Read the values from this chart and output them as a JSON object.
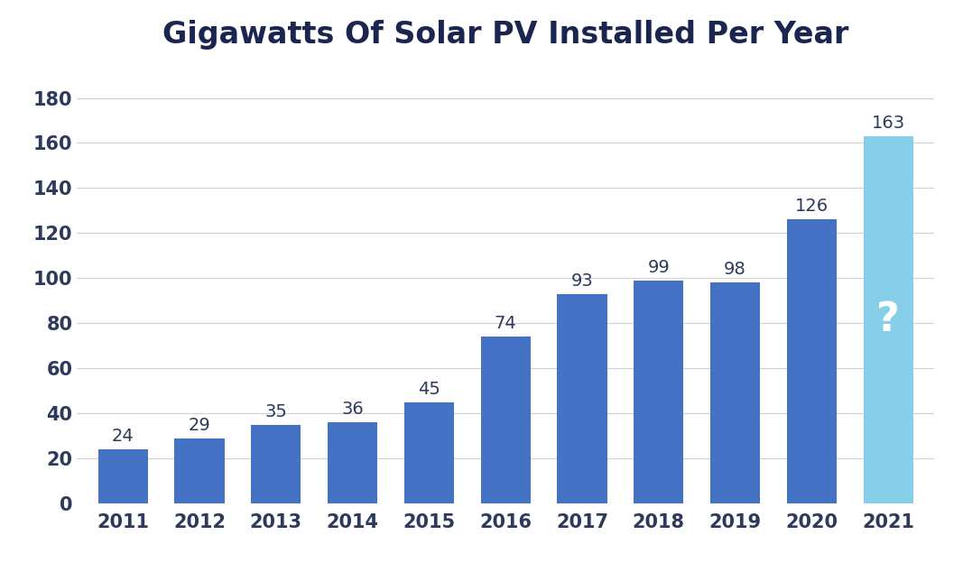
{
  "title": "Gigawatts Of Solar PV Installed Per Year",
  "categories": [
    "2011",
    "2012",
    "2013",
    "2014",
    "2015",
    "2016",
    "2017",
    "2018",
    "2019",
    "2020",
    "2021"
  ],
  "values": [
    24,
    29,
    35,
    36,
    45,
    74,
    93,
    99,
    98,
    126,
    163
  ],
  "bar_colors": [
    "#4472C4",
    "#4472C4",
    "#4472C4",
    "#4472C4",
    "#4472C4",
    "#4472C4",
    "#4472C4",
    "#4472C4",
    "#4472C4",
    "#4472C4",
    "#87CEEB"
  ],
  "question_mark_color": "#FFFFFF",
  "label_color": "#2E3A5C",
  "tick_color": "#2E3A5C",
  "title_color": "#1a2550",
  "background_color": "#FFFFFF",
  "ylim": [
    0,
    193
  ],
  "yticks": [
    0,
    20,
    40,
    60,
    80,
    100,
    120,
    140,
    160,
    180
  ],
  "title_fontsize": 24,
  "label_fontsize": 14,
  "tick_fontsize": 15,
  "grid_color": "#D0D0D8",
  "bar_width": 0.65
}
